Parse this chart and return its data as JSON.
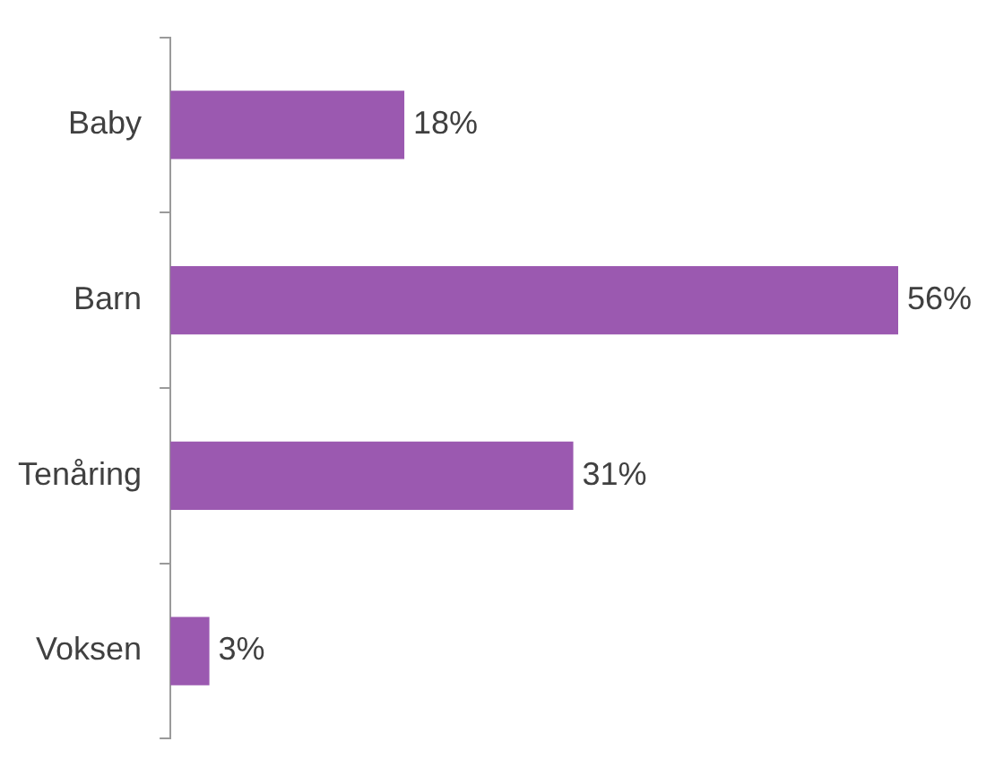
{
  "chart_data": {
    "type": "bar",
    "orientation": "horizontal",
    "categories": [
      "Baby",
      "Barn",
      "Tenåring",
      "Voksen"
    ],
    "values": [
      18,
      56,
      31,
      3
    ],
    "value_labels": [
      "18%",
      "56%",
      "31%",
      "3%"
    ],
    "color": "#9b59b0",
    "legend": false,
    "grid": false
  }
}
